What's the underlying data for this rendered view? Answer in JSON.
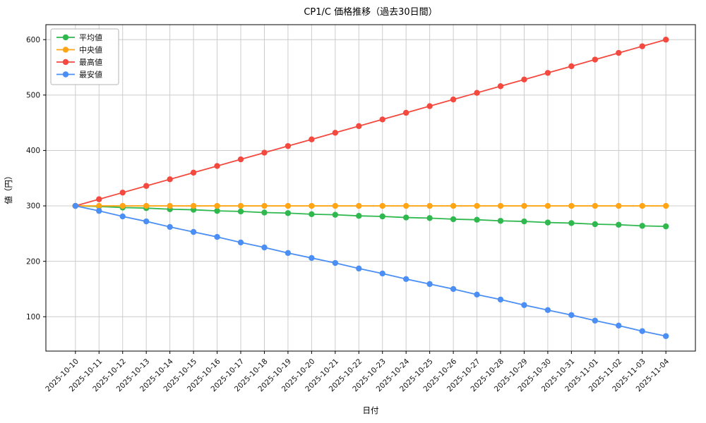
{
  "chart_data": {
    "type": "line",
    "title": "CP1/C 価格推移（過去30日間）",
    "xlabel": "日付",
    "ylabel": "値（円）",
    "grid": true,
    "legend_position": "upper-left",
    "background": "#ffffff",
    "axes_background": "#ffffff",
    "grid_color": "#cccccc",
    "spine_color": "#000000",
    "text_color": "#111111",
    "yticks": [
      100,
      200,
      300,
      400,
      500,
      600
    ],
    "ylim": [
      38,
      627
    ],
    "x": [
      "2025-10-10",
      "2025-10-11",
      "2025-10-12",
      "2025-10-13",
      "2025-10-14",
      "2025-10-15",
      "2025-10-16",
      "2025-10-17",
      "2025-10-18",
      "2025-10-19",
      "2025-10-20",
      "2025-10-21",
      "2025-10-22",
      "2025-10-23",
      "2025-10-24",
      "2025-10-25",
      "2025-10-26",
      "2025-10-27",
      "2025-10-28",
      "2025-10-29",
      "2025-10-30",
      "2025-10-31",
      "2025-11-01",
      "2025-11-02",
      "2025-11-03",
      "2025-11-04"
    ],
    "series": [
      {
        "key": "average",
        "name": "平均値",
        "color": "#2eb84e",
        "values": [
          300,
          299,
          297,
          296,
          294,
          293,
          291,
          290,
          288,
          287,
          285,
          284,
          282,
          281,
          279,
          278,
          276,
          275,
          273,
          272,
          270,
          269,
          267,
          266,
          264,
          263
        ]
      },
      {
        "key": "median",
        "name": "中央値",
        "color": "#ffa516",
        "values": [
          300,
          300,
          300,
          300,
          300,
          300,
          300,
          300,
          300,
          300,
          300,
          300,
          300,
          300,
          300,
          300,
          300,
          300,
          300,
          300,
          300,
          300,
          300,
          300,
          300,
          300
        ]
      },
      {
        "key": "max",
        "name": "最高値",
        "color": "#f4493f",
        "values": [
          300,
          312,
          324,
          336,
          348,
          360,
          372,
          384,
          396,
          408,
          420,
          432,
          444,
          456,
          468,
          480,
          492,
          504,
          516,
          528,
          540,
          552,
          564,
          576,
          588,
          600
        ]
      },
      {
        "key": "min",
        "name": "最安値",
        "color": "#4b8ff5",
        "values": [
          300,
          291,
          281,
          272,
          262,
          253,
          244,
          234,
          225,
          215,
          206,
          197,
          187,
          178,
          168,
          159,
          150,
          140,
          131,
          121,
          112,
          103,
          93,
          84,
          74,
          65
        ]
      }
    ]
  }
}
